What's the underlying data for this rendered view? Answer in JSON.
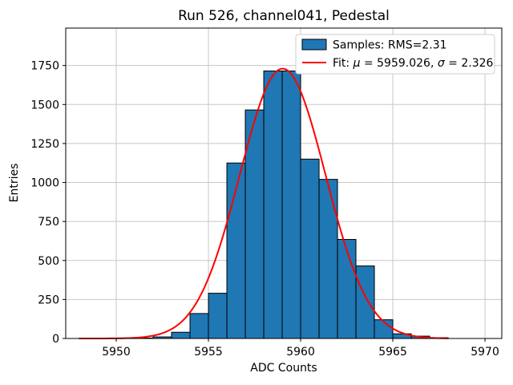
{
  "title": "Run 526, channel041, Pedestal",
  "axes": {
    "xlabel": "ADC Counts",
    "ylabel": "Entries"
  },
  "legend": {
    "samples_label": "Samples: RMS=2.31",
    "fit_label": "Fit: μ = 5959.026, σ = 2.326",
    "fit_label_parts": [
      "Fit: ",
      "μ",
      " = 5959.026, ",
      "σ",
      " = 2.326"
    ],
    "fit_label_italic_parts": [
      1,
      3
    ]
  },
  "colors": {
    "bar_fill": "#1f77b4",
    "bar_edge": "#000000",
    "fit_line": "#ff0000",
    "grid": "#c8c8c8",
    "spine": "#000000",
    "legend_border": "#cccccc",
    "background": "#ffffff",
    "text": "#000000"
  },
  "chart_data": {
    "type": "bar",
    "subtype": "histogram-with-gaussian-fit",
    "title": "Run 526, channel041, Pedestal",
    "xlabel": "ADC Counts",
    "ylabel": "Entries",
    "xlim": [
      5947.26,
      5970.91
    ],
    "ylim": [
      0,
      1990
    ],
    "xticks": [
      5950,
      5955,
      5960,
      5965,
      5970
    ],
    "yticks": [
      0,
      250,
      500,
      750,
      1000,
      1250,
      1500,
      1750
    ],
    "grid": true,
    "legend_position": "upper right",
    "histogram": {
      "bin_width": 1,
      "bin_edges": [
        5948,
        5949,
        5950,
        5951,
        5952,
        5953,
        5954,
        5955,
        5956,
        5957,
        5958,
        5959,
        5960,
        5961,
        5962,
        5963,
        5964,
        5965,
        5966,
        5967,
        5968
      ],
      "counts": [
        0,
        0,
        1,
        3,
        10,
        40,
        160,
        290,
        1125,
        1465,
        1715,
        1715,
        1150,
        1020,
        635,
        465,
        120,
        30,
        15,
        5
      ],
      "rms": 2.31
    },
    "fit": {
      "type": "gaussian",
      "mu": 5959.026,
      "sigma": 2.326,
      "amplitude": 1730,
      "x_min": 5948,
      "x_max": 5968
    }
  }
}
